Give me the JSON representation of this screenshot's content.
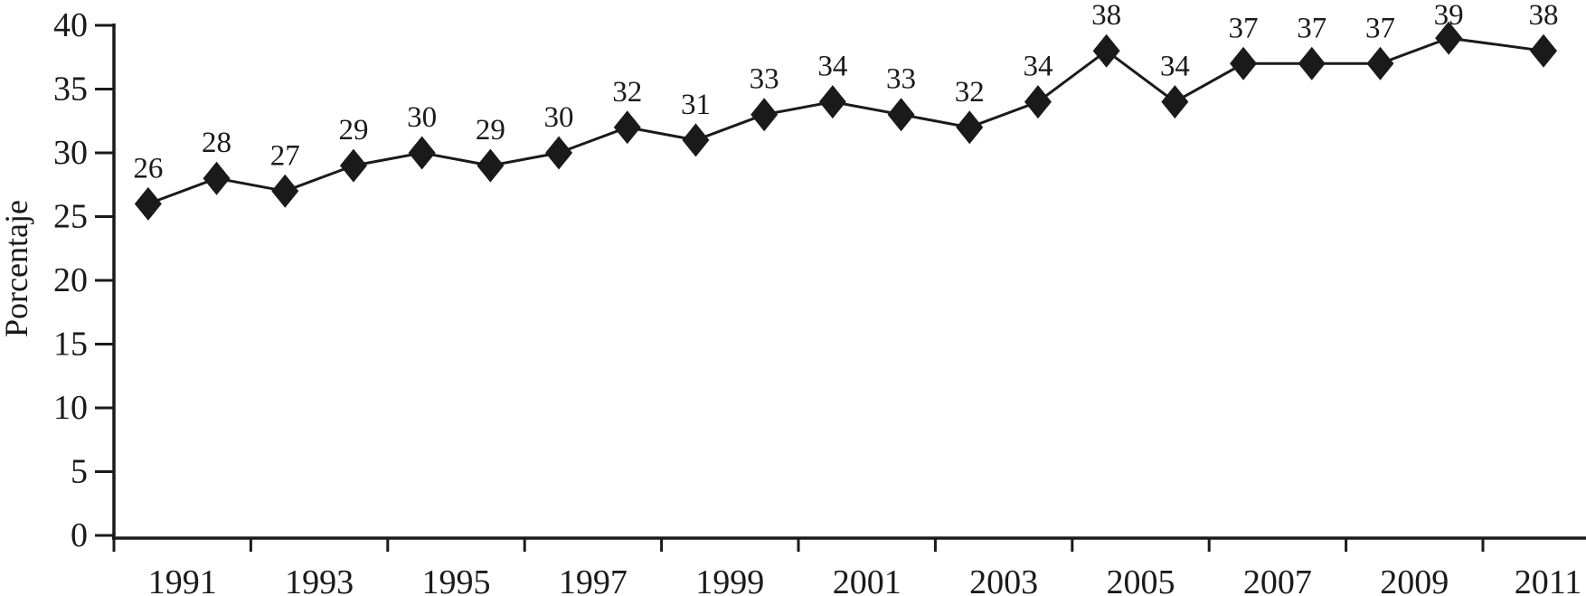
{
  "chart_data": {
    "type": "line",
    "title": "",
    "xlabel": "",
    "ylabel": "Porcentaje",
    "x": [
      1991,
      1992,
      1993,
      1994,
      1995,
      1996,
      1997,
      1998,
      1999,
      2000,
      2001,
      2002,
      2003,
      2004,
      2005,
      2006,
      2007,
      2008,
      2009,
      2010,
      2011
    ],
    "values": [
      26,
      28,
      27,
      29,
      30,
      29,
      30,
      32,
      31,
      33,
      34,
      33,
      32,
      34,
      38,
      34,
      37,
      37,
      37,
      39,
      38
    ],
    "data_point_labels": [
      "26",
      "28",
      "27",
      "29",
      "30",
      "29",
      "30",
      "32",
      "31",
      "33",
      "34",
      "33",
      "32",
      "34",
      "38",
      "34",
      "37",
      "37",
      "37",
      "39",
      "38"
    ],
    "x_tick_labels": [
      "1991",
      "1993",
      "1995",
      "1997",
      "1999",
      "2001",
      "2003",
      "2005",
      "2007",
      "2009",
      "2011"
    ],
    "y_tick_labels": [
      "0",
      "5",
      "10",
      "15",
      "20",
      "25",
      "30",
      "35",
      "40"
    ],
    "y_ticks": [
      0,
      5,
      10,
      15,
      20,
      25,
      30,
      35,
      40
    ],
    "ylim": [
      0,
      40
    ],
    "grid": false,
    "legend": "none",
    "marker": "diamond",
    "line_color": "#1a1a1a",
    "marker_color": "#1a1a1a",
    "background_color": "#ffffff",
    "data_labels_position": "above"
  }
}
